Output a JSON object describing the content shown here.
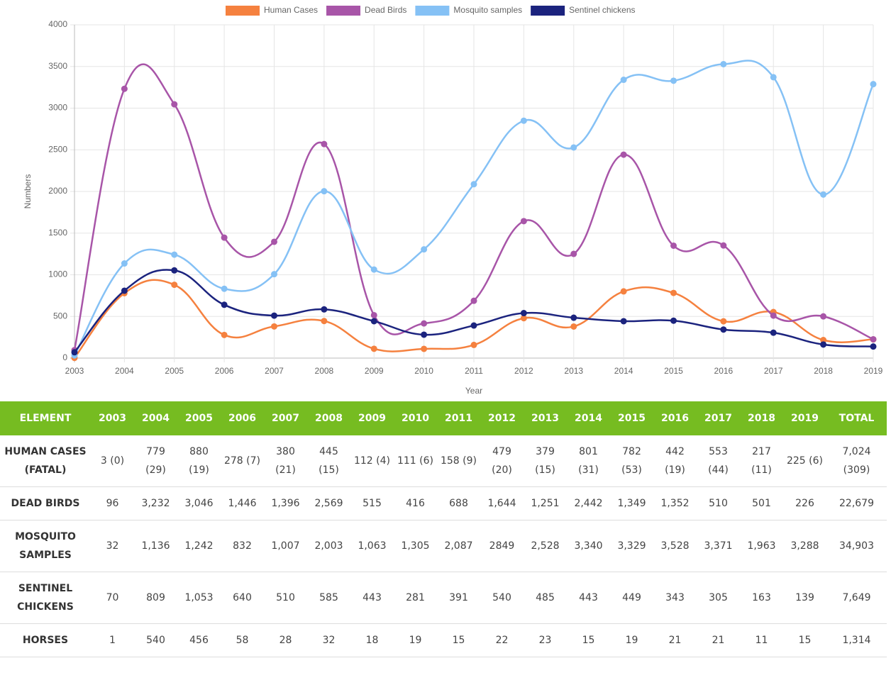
{
  "chart_data": {
    "type": "line",
    "x_label": "Year",
    "y_label": "Numbers",
    "categories": [
      "2003",
      "2004",
      "2005",
      "2006",
      "2007",
      "2008",
      "2009",
      "2010",
      "2011",
      "2012",
      "2013",
      "2014",
      "2015",
      "2016",
      "2017",
      "2018",
      "2019"
    ],
    "series": [
      {
        "name": "Human Cases",
        "color": "#f5813f",
        "values": [
          3,
          779,
          880,
          278,
          380,
          445,
          112,
          111,
          158,
          479,
          379,
          801,
          782,
          442,
          553,
          217,
          225
        ]
      },
      {
        "name": "Dead Birds",
        "color": "#a855a8",
        "values": [
          96,
          3232,
          3046,
          1446,
          1396,
          2569,
          515,
          416,
          688,
          1644,
          1251,
          2442,
          1349,
          1352,
          510,
          501,
          226
        ]
      },
      {
        "name": "Mosquito samples",
        "color": "#85c1f5",
        "values": [
          32,
          1136,
          1242,
          832,
          1007,
          2003,
          1063,
          1305,
          2087,
          2849,
          2528,
          3340,
          3329,
          3528,
          3371,
          1963,
          3288
        ]
      },
      {
        "name": "Sentinel chickens",
        "color": "#1b237e",
        "values": [
          70,
          809,
          1053,
          640,
          510,
          585,
          443,
          281,
          391,
          540,
          485,
          443,
          449,
          343,
          305,
          163,
          139
        ]
      }
    ],
    "ylim": [
      0,
      4000
    ],
    "yticks": [
      0,
      500,
      1000,
      1500,
      2000,
      2500,
      3000,
      3500,
      4000
    ],
    "grid": true,
    "legend": "top"
  },
  "table": {
    "header": [
      "ELEMENT",
      "2003",
      "2004",
      "2005",
      "2006",
      "2007",
      "2008",
      "2009",
      "2010",
      "2011",
      "2012",
      "2013",
      "2014",
      "2015",
      "2016",
      "2017",
      "2018",
      "2019",
      "TOTAL"
    ],
    "rows": [
      [
        "HUMAN CASES (FATAL)",
        "3 (0)",
        "779 (29)",
        "880 (19)",
        "278 (7)",
        "380 (21)",
        "445 (15)",
        "112 (4)",
        "111 (6)",
        "158 (9)",
        "479 (20)",
        "379 (15)",
        "801 (31)",
        "782 (53)",
        "442 (19)",
        "553 (44)",
        "217 (11)",
        "225 (6)",
        "7,024 (309)"
      ],
      [
        "DEAD BIRDS",
        "96",
        "3,232",
        "3,046",
        "1,446",
        "1,396",
        "2,569",
        "515",
        "416",
        "688",
        "1,644",
        "1,251",
        "2,442",
        "1,349",
        "1,352",
        "510",
        "501",
        "226",
        "22,679"
      ],
      [
        "MOSQUITO SAMPLES",
        "32",
        "1,136",
        "1,242",
        "832",
        "1,007",
        "2,003",
        "1,063",
        "1,305",
        "2,087",
        "2849",
        "2,528",
        "3,340",
        "3,329",
        "3,528",
        "3,371",
        "1,963",
        "3,288",
        "34,903"
      ],
      [
        "SENTINEL CHICKENS",
        "70",
        "809",
        "1,053",
        "640",
        "510",
        "585",
        "443",
        "281",
        "391",
        "540",
        "485",
        "443",
        "449",
        "343",
        "305",
        "163",
        "139",
        "7,649"
      ],
      [
        "HORSES",
        "1",
        "540",
        "456",
        "58",
        "28",
        "32",
        "18",
        "19",
        "15",
        "22",
        "23",
        "15",
        "19",
        "21",
        "21",
        "11",
        "15",
        "1,314"
      ]
    ]
  }
}
